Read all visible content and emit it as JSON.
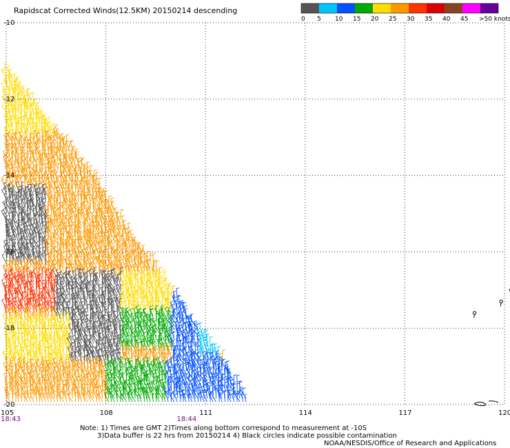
{
  "chart_data": {
    "type": "scatter",
    "title": "Rapidscat Corrected Winds(12.5KM) 20150214 descending",
    "x_ticks": [
      "105",
      "108",
      "111",
      "114",
      "117",
      "120"
    ],
    "x_tick_values": [
      105,
      108,
      111,
      114,
      117,
      120
    ],
    "y_ticks": [
      "-10",
      "-12",
      "-14",
      "-16",
      "-18",
      "-20"
    ],
    "y_tick_values": [
      -10,
      -12,
      -14,
      -16,
      -18,
      -20
    ],
    "xlim": [
      105,
      120
    ],
    "ylim": [
      -20,
      -10
    ],
    "grid": true,
    "time_labels": [
      {
        "text": "18:43",
        "x": 105
      },
      {
        "text": "18:44",
        "x": 110.3
      }
    ],
    "legend": {
      "labels": [
        "0",
        "5",
        "10",
        "15",
        "20",
        "25",
        "30",
        "35",
        "40",
        "45",
        ">50 knots"
      ],
      "colors": [
        "#555555",
        "#00c8ff",
        "#0050ff",
        "#00aa00",
        "#ffdd00",
        "#ff9900",
        "#ff3300",
        "#dd0000",
        "#884422",
        "#ff00ff",
        "#660099"
      ]
    },
    "swath_edge": [
      [
        105,
        -11.2
      ],
      [
        106.4,
        -12.7
      ],
      [
        107.7,
        -14.1
      ],
      [
        108.7,
        -15.5
      ],
      [
        109.5,
        -16.4
      ],
      [
        110.6,
        -17.8
      ],
      [
        111.4,
        -18.7
      ],
      [
        112.3,
        -19.9
      ]
    ],
    "speed_zones": [
      {
        "lon": [
          105,
          106.5
        ],
        "lat": [
          -13.0,
          -11.2
        ],
        "color": "#ffdd00"
      },
      {
        "lon": [
          105,
          107.5
        ],
        "lat": [
          -15.0,
          -13.0
        ],
        "color": "#ff9900"
      },
      {
        "lon": [
          105,
          106.2
        ],
        "lat": [
          -16.4,
          -14.4
        ],
        "color": "#555555"
      },
      {
        "lon": [
          106.2,
          108.8
        ],
        "lat": [
          -16.6,
          -15.0
        ],
        "color": "#ff9900"
      },
      {
        "lon": [
          105,
          106.5
        ],
        "lat": [
          -17.6,
          -16.6
        ],
        "color": "#ff3300"
      },
      {
        "lon": [
          106.5,
          108.5
        ],
        "lat": [
          -17.8,
          -16.6
        ],
        "color": "#555555"
      },
      {
        "lon": [
          108.5,
          110.0
        ],
        "lat": [
          -17.8,
          -16.6
        ],
        "color": "#ffdd00"
      },
      {
        "lon": [
          105,
          107.0
        ],
        "lat": [
          -19.0,
          -17.8
        ],
        "color": "#ffdd00"
      },
      {
        "lon": [
          107.0,
          108.5
        ],
        "lat": [
          -19.0,
          -17.8
        ],
        "color": "#555555"
      },
      {
        "lon": [
          108.5,
          110.0
        ],
        "lat": [
          -18.6,
          -17.6
        ],
        "color": "#00aa00"
      },
      {
        "lon": [
          110.0,
          111.5
        ],
        "lat": [
          -19.0,
          -17.2
        ],
        "color": "#0050ff"
      },
      {
        "lon": [
          105,
          108.0
        ],
        "lat": [
          -20.0,
          -19.0
        ],
        "color": "#ff9900"
      },
      {
        "lon": [
          108.0,
          109.8
        ],
        "lat": [
          -20.0,
          -19.0
        ],
        "color": "#00aa00"
      },
      {
        "lon": [
          109.8,
          112.3
        ],
        "lat": [
          -20.0,
          -19.0
        ],
        "color": "#0050ff"
      },
      {
        "lon": [
          110.8,
          111.6
        ],
        "lat": [
          -18.8,
          -18.0
        ],
        "color": "#00c8ff"
      }
    ],
    "contamination_circles": [
      [
        119.1,
        -17.6
      ],
      [
        119.9,
        -17.3
      ],
      [
        120.2,
        -17.0
      ]
    ]
  },
  "notes": {
    "line1": "Note: 1) Times are GMT 2)Times along bottom correspond to measurement at -10S",
    "line2": "3)Data buffer is 22 hrs from 20150214 4) Black circles indicate possible contamination",
    "credit": "NOAA/NESDIS/Office of Research and Applications"
  },
  "colors": {
    "grid": "#333333",
    "time_label": "#7a0a8a"
  }
}
